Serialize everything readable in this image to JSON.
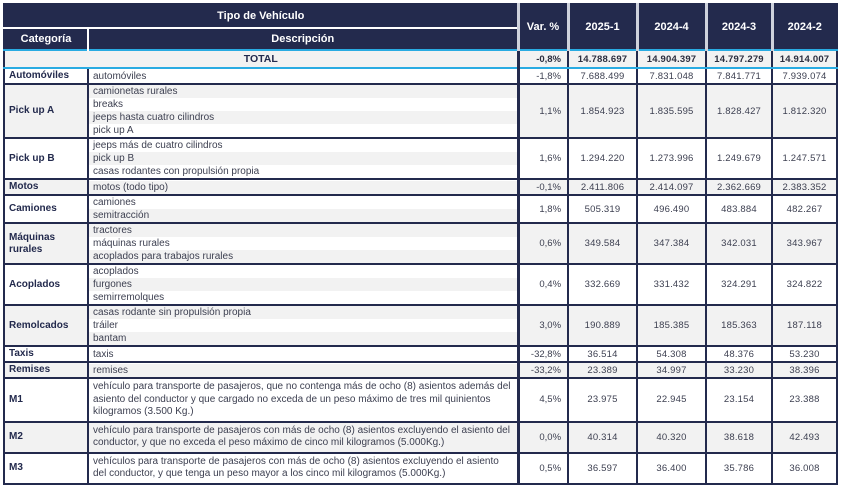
{
  "header": {
    "title": "Tipo de Vehículo",
    "col_categoria": "Categoría",
    "col_descripcion": "Descripción",
    "col_var": "Var. %",
    "periods": [
      "2025-1",
      "2024-4",
      "2024-3",
      "2024-2"
    ]
  },
  "total": {
    "label": "TOTAL",
    "var": "-0,8%",
    "values": [
      "14.788.697",
      "14.904.397",
      "14.797.279",
      "14.914.007"
    ]
  },
  "groups": [
    {
      "category": "Automóviles",
      "descriptions": [
        "automóviles"
      ],
      "var": "-1,8%",
      "values": [
        "7.688.499",
        "7.831.048",
        "7.841.771",
        "7.939.074"
      ],
      "shade": "white",
      "wrap": false
    },
    {
      "category": "Pick up A",
      "descriptions": [
        "camionetas rurales",
        "breaks",
        "jeeps hasta cuatro cilindros",
        "pick up A"
      ],
      "var": "1,1%",
      "values": [
        "1.854.923",
        "1.835.595",
        "1.828.427",
        "1.812.320"
      ],
      "shade": "gray",
      "wrap": false
    },
    {
      "category": "Pick up B",
      "descriptions": [
        "jeeps más de cuatro cilindros",
        "pick up B",
        "casas rodantes con propulsión propia"
      ],
      "var": "1,6%",
      "values": [
        "1.294.220",
        "1.273.996",
        "1.249.679",
        "1.247.571"
      ],
      "shade": "white",
      "wrap": false
    },
    {
      "category": "Motos",
      "descriptions": [
        "motos (todo tipo)"
      ],
      "var": "-0,1%",
      "values": [
        "2.411.806",
        "2.414.097",
        "2.362.669",
        "2.383.352"
      ],
      "shade": "gray",
      "wrap": false
    },
    {
      "category": "Camiones",
      "descriptions": [
        "camiones",
        "semitracción"
      ],
      "var": "1,8%",
      "values": [
        "505.319",
        "496.490",
        "483.884",
        "482.267"
      ],
      "shade": "white",
      "wrap": false
    },
    {
      "category": "Máquinas rurales",
      "descriptions": [
        "tractores",
        "máquinas rurales",
        "acoplados para trabajos rurales"
      ],
      "var": "0,6%",
      "values": [
        "349.584",
        "347.384",
        "342.031",
        "343.967"
      ],
      "shade": "gray",
      "wrap": false
    },
    {
      "category": "Acoplados",
      "descriptions": [
        "acoplados",
        "furgones",
        "semirremolques"
      ],
      "var": "0,4%",
      "values": [
        "332.669",
        "331.432",
        "324.291",
        "324.822"
      ],
      "shade": "white",
      "wrap": false
    },
    {
      "category": "Remolcados",
      "descriptions": [
        "casas rodante sin propulsión propia",
        "tráiler",
        "bantam"
      ],
      "var": "3,0%",
      "values": [
        "190.889",
        "185.385",
        "185.363",
        "187.118"
      ],
      "shade": "gray",
      "wrap": false
    },
    {
      "category": "Taxis",
      "descriptions": [
        "taxis"
      ],
      "var": "-32,8%",
      "values": [
        "36.514",
        "54.308",
        "48.376",
        "53.230"
      ],
      "shade": "white",
      "wrap": false
    },
    {
      "category": "Remises",
      "descriptions": [
        "remises"
      ],
      "var": "-33,2%",
      "values": [
        "23.389",
        "34.997",
        "33.230",
        "38.396"
      ],
      "shade": "gray",
      "wrap": false
    },
    {
      "category": "M1",
      "descriptions": [
        "vehículo para transporte de pasajeros, que no contenga más de ocho (8) asientos además del asiento del conductor y que cargado no exceda de un peso máximo de tres mil quinientos kilogramos (3.500 Kg.)"
      ],
      "var": "4,5%",
      "values": [
        "23.975",
        "22.945",
        "23.154",
        "23.388"
      ],
      "shade": "white",
      "wrap": true
    },
    {
      "category": "M2",
      "descriptions": [
        "vehículo para transporte de pasajeros con más de ocho (8) asientos excluyendo el asiento del conductor, y que no exceda el peso máximo de cinco mil kilogramos (5.000Kg.)"
      ],
      "var": "0,0%",
      "values": [
        "40.314",
        "40.320",
        "38.618",
        "42.493"
      ],
      "shade": "gray",
      "wrap": true
    },
    {
      "category": "M3",
      "descriptions": [
        "vehículos para transporte de pasajeros con más de ocho (8) asientos excluyendo el asiento del conductor, y que tenga un peso mayor a los cinco mil kilogramos (5.000Kg.)"
      ],
      "var": "0,5%",
      "values": [
        "36.597",
        "36.400",
        "35.786",
        "36.008"
      ],
      "shade": "white",
      "wrap": true
    }
  ],
  "colors": {
    "navy": "#232a4d",
    "cyan": "#29abe2",
    "row_gray": "#f2f2f2",
    "text": "#3c3f50"
  }
}
